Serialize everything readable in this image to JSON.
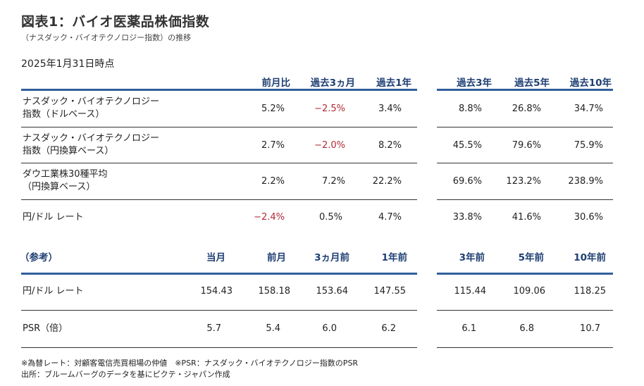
{
  "title": "図表1：バイオ医薬品株価指数",
  "subtitle": "（ナスダック・バイオテクノロジー指数）の推移",
  "date": "2025年1月31日時点",
  "table1": {
    "headers": [
      "前月比",
      "過去3ヵ月",
      "過去1年",
      "過去3年",
      "過去5年",
      "過去10年"
    ],
    "rows": [
      {
        "label": "ナスダック・バイオテクノロジー\n指数（ドルベース）",
        "values": [
          "5.2%",
          "−2.5%",
          "3.4%",
          "8.8%",
          "26.8%",
          "34.7%"
        ]
      },
      {
        "label": "ナスダック・バイオテクノロジー\n指数（円換算ベース）",
        "values": [
          "2.7%",
          "−2.0%",
          "8.2%",
          "45.5%",
          "79.6%",
          "75.9%"
        ]
      },
      {
        "label": "ダウ工業株30種平均\n（円換算ベース）",
        "values": [
          "2.2%",
          "7.2%",
          "22.2%",
          "69.6%",
          "123.2%",
          "238.9%"
        ]
      },
      {
        "label": "円/ドル レート",
        "values": [
          "−2.4%",
          "0.5%",
          "4.7%",
          "33.8%",
          "41.6%",
          "30.6%"
        ]
      }
    ]
  },
  "table2": {
    "label_header": "（参考）",
    "headers": [
      "当月",
      "前月",
      "3ヵ月前",
      "1年前",
      "3年前",
      "5年前",
      "10年前"
    ],
    "rows": [
      {
        "label": "円/ドル レート",
        "values": [
          "154.43",
          "158.18",
          "153.64",
          "147.55",
          "115.44",
          "109.06",
          "118.25"
        ]
      },
      {
        "label": "PSR（倍）",
        "values": [
          "5.7",
          "5.4",
          "6.0",
          "6.2",
          "6.1",
          "6.8",
          "10.7"
        ]
      }
    ]
  },
  "footnotes": [
    "※為替レート：対顧客電信売買相場の仲値　※PSR：ナスダック・バイオテクノロジー指数のPSR",
    "出所：ブルームバーグのデータを基にピクテ・ジャパン作成"
  ],
  "colors": {
    "header_text": "#1f3f73",
    "rule": "#2f5f9b",
    "negative": "#b02a36"
  }
}
